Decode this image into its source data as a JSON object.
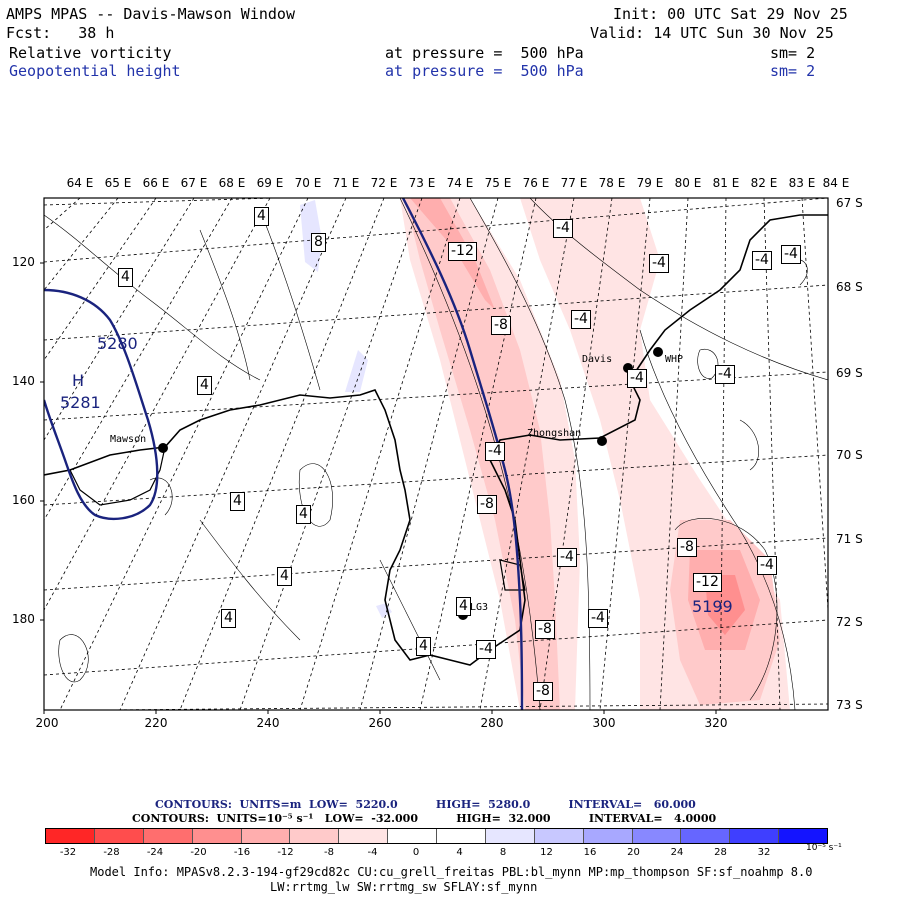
{
  "header": {
    "title": "AMPS MPAS -- Davis-Mawson Window",
    "init": "Init: 00 UTC Sat 29 Nov 25",
    "fcst": "Fcst:   38 h",
    "valid": "Valid: 14 UTC Sun 30 Nov 25",
    "field1": {
      "name": "Relative vorticity",
      "pressure": "at pressure =  500 hPa",
      "sm": "sm= 2"
    },
    "field2": {
      "name": "Geopotential height",
      "pressure": "at pressure =  500 hPa",
      "sm": "sm= 2"
    }
  },
  "map": {
    "lon_labels": [
      "64 E",
      "65 E",
      "66 E",
      "67 E",
      "68 E",
      "69 E",
      "70 E",
      "71 E",
      "72 E",
      "73 E",
      "74 E",
      "75 E",
      "76 E",
      "77 E",
      "78 E",
      "79 E",
      "80 E",
      "81 E",
      "82 E",
      "83 E",
      "84 E"
    ],
    "lat_labels": [
      "67 S",
      "68 S",
      "69 S",
      "70 S",
      "71 S",
      "72 S",
      "73 S"
    ],
    "x_ticks": [
      "200",
      "220",
      "240",
      "260",
      "280",
      "300",
      "320"
    ],
    "y_ticks": [
      "120",
      "140",
      "160",
      "180"
    ],
    "stations": [
      "Mawson",
      "Davis",
      "WHP",
      "Zhongshan",
      "LG3"
    ],
    "height_labels": [
      "5280",
      "H",
      "5281",
      "5199"
    ],
    "vort_labels": [
      "4",
      "8",
      "4",
      "4",
      "4",
      "4",
      "4",
      "4",
      "4",
      "4",
      "-12",
      "-8",
      "-4",
      "-4",
      "-4",
      "-4",
      "-4",
      "-8",
      "-4",
      "-4",
      "-4",
      "-4",
      "-4",
      "-8",
      "-12",
      "-8",
      "-8",
      "-4",
      "-4"
    ]
  },
  "contours": {
    "line1": "CONTOURS:  UNITS=m  LOW=  5220.0          HIGH=  5280.0          INTERVAL=   60.000",
    "line2": "CONTOURS:  UNITS=10⁻⁵ s⁻¹   LOW=  -32.000          HIGH=  32.000          INTERVAL=   4.0000"
  },
  "colorbar": {
    "labels": [
      "-32",
      "-28",
      "-24",
      "-20",
      "-16",
      "-12",
      "-8",
      "-4",
      "0",
      "4",
      "8",
      "12",
      "16",
      "20",
      "24",
      "28",
      "32"
    ],
    "unit": "10⁻⁵ s⁻¹",
    "colors": [
      "#ff0000",
      "#ff2626",
      "#ff4d4d",
      "#ff6e6e",
      "#ff8f8f",
      "#ffaeae",
      "#ffcaca",
      "#ffe4e4",
      "#ffffff",
      "#ffffff",
      "#e6e6ff",
      "#c8c8ff",
      "#a8a8ff",
      "#8888ff",
      "#6666ff",
      "#3f3fff",
      "#1414ff"
    ]
  },
  "footer": {
    "line1": "Model Info: MPASv8.2.3-194-gf29cd82c CU:cu_grell_freitas PBL:bl_mynn MP:mp_thompson SF:sf_noahmp 8.0",
    "line2": "LW:rrtmg_lw SW:rrtmg_sw SFLAY:sf_mynn"
  }
}
